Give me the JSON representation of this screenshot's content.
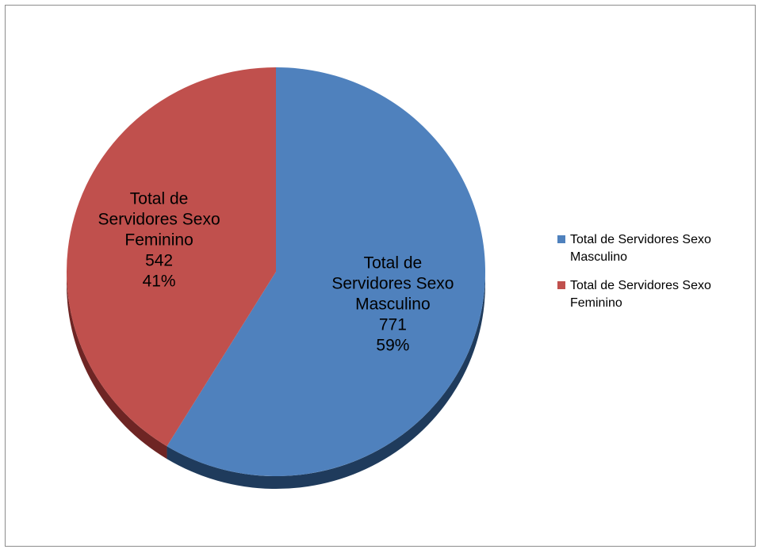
{
  "chart_data": {
    "type": "pie",
    "title": "",
    "slices": [
      {
        "name": "Total de Servidores Sexo Masculino",
        "label_lines": [
          "Total de",
          "Servidores Sexo",
          "Masculino"
        ],
        "value": 771,
        "percent": "59%",
        "color": "#4f81bd",
        "side_color": "#1f3b5c"
      },
      {
        "name": "Total de Servidores Sexo Feminino",
        "label_lines": [
          "Total de",
          "Servidores Sexo",
          "Feminino"
        ],
        "value": 542,
        "percent": "41%",
        "color": "#c0504d",
        "side_color": "#6e2524"
      }
    ],
    "legend_position": "right",
    "start_angle_deg": 0,
    "direction": "clockwise",
    "style": "3d"
  }
}
